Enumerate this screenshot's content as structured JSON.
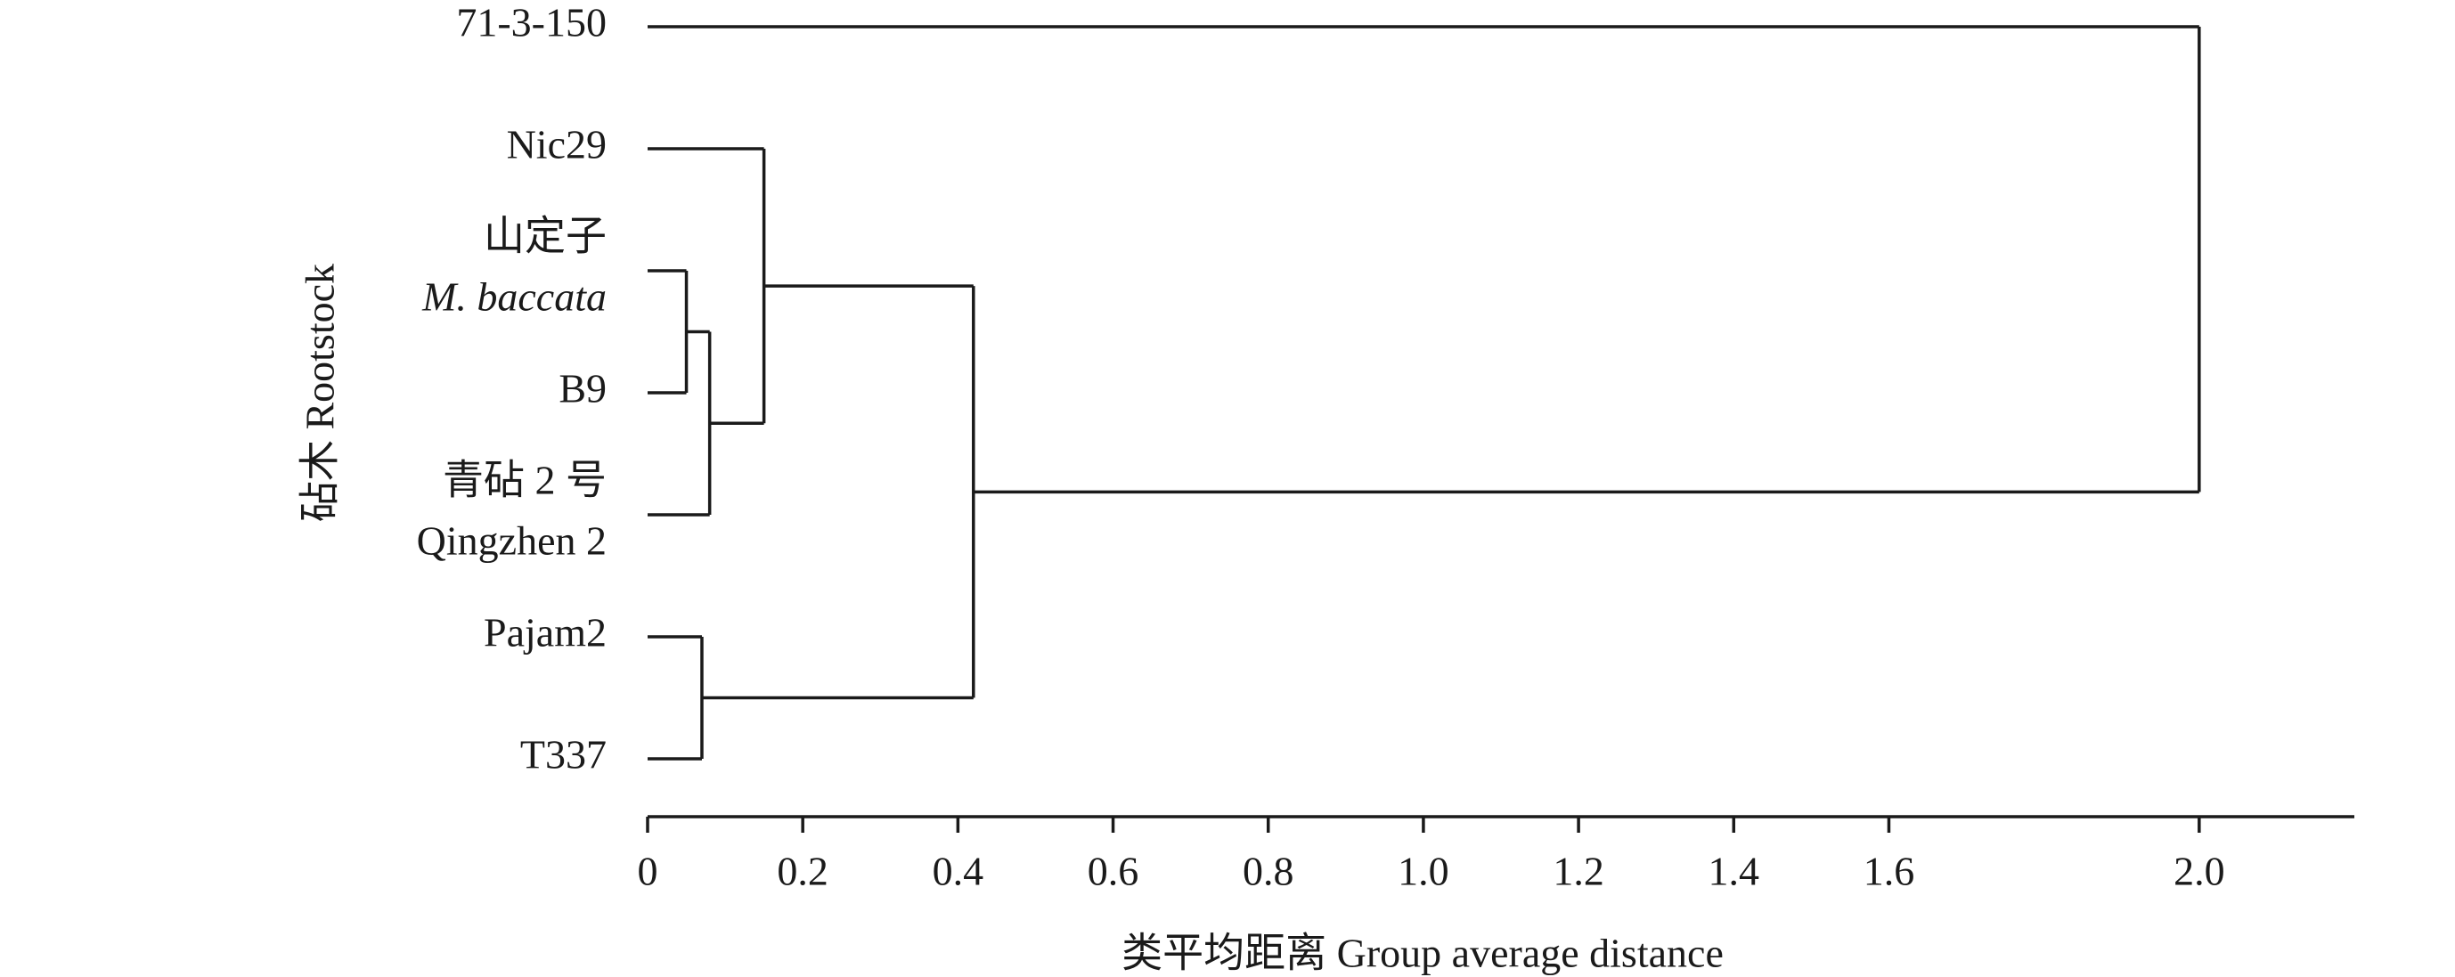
{
  "chart_data": {
    "type": "dendrogram",
    "x_label": "类平均距离 Group average distance",
    "y_label": "砧木 Rootstock",
    "xlim": [
      0,
      2.2
    ],
    "xticks": [
      0,
      0.2,
      0.4,
      0.6,
      0.8,
      {
        "value": 1,
        "label": "1.0"
      },
      1.2,
      1.4,
      1.6,
      {
        "value": 2,
        "label": "2.0"
      }
    ],
    "color": "#1a1a1a",
    "tree": {
      "height": 2.0,
      "children": [
        {
          "lines": [
            {
              "text": "71-3-150"
            }
          ]
        },
        {
          "height": 0.42,
          "children": [
            {
              "height": 0.15,
              "children": [
                {
                  "lines": [
                    {
                      "text": "Nic29"
                    }
                  ]
                },
                {
                  "height": 0.08,
                  "children": [
                    {
                      "height": 0.05,
                      "children": [
                        {
                          "lines": [
                            {
                              "text": "山定子"
                            },
                            {
                              "text": "M. baccata",
                              "italic": true
                            }
                          ]
                        },
                        {
                          "lines": [
                            {
                              "text": "B9"
                            }
                          ]
                        }
                      ]
                    },
                    {
                      "lines": [
                        {
                          "text": "青砧 2 号"
                        },
                        {
                          "text": "Qingzhen 2"
                        }
                      ]
                    }
                  ]
                }
              ]
            },
            {
              "height": 0.07,
              "children": [
                {
                  "lines": [
                    {
                      "text": "Pajam2"
                    }
                  ]
                },
                {
                  "lines": [
                    {
                      "text": "T337"
                    }
                  ]
                }
              ]
            }
          ]
        }
      ]
    }
  }
}
